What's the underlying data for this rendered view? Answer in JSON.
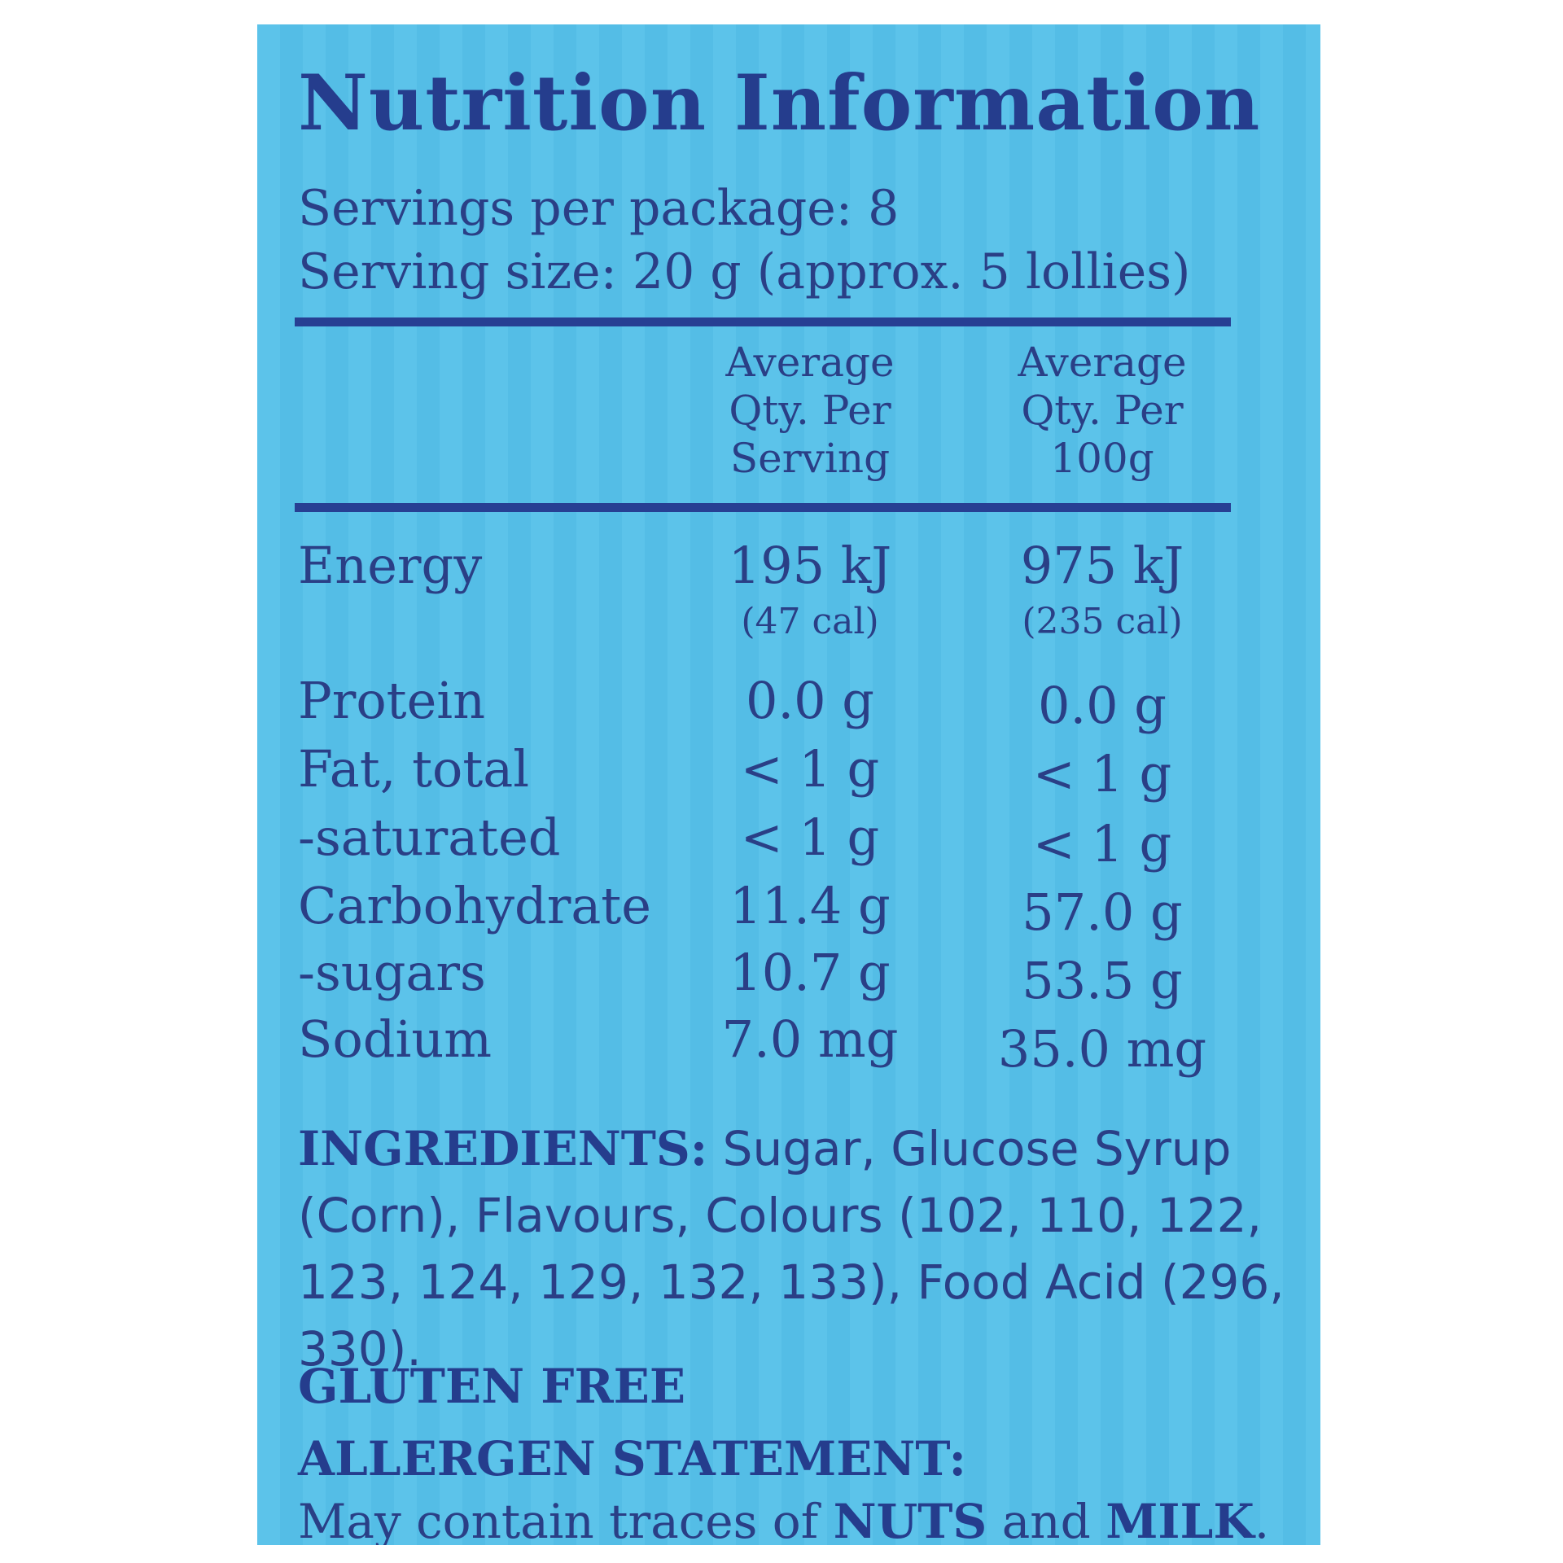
{
  "title": "Nutrition Information",
  "servings_per_package": "Servings per package: 8",
  "serving_size": "Serving size: 20 g (approx. 5 lollies)",
  "columns": {
    "per_serving": [
      "Average",
      "Qty. Per",
      "Serving"
    ],
    "per_100g": [
      "Average",
      "Qty. Per",
      "100g"
    ]
  },
  "rows": [
    {
      "label": "Energy",
      "per_serving": "195 kJ",
      "per_100g": "975 kJ",
      "per_serving_cal": "(47 cal)",
      "per_100g_cal": "(235 cal)"
    },
    {
      "label": "Protein",
      "per_serving": "0.0 g",
      "per_100g": "0.0 g"
    },
    {
      "label": "Fat, total",
      "per_serving": "< 1 g",
      "per_100g": "< 1 g"
    },
    {
      "label": "-saturated",
      "per_serving": "< 1 g",
      "per_100g": "< 1 g"
    },
    {
      "label": "Carbohydrate",
      "per_serving": "11.4 g",
      "per_100g": "57.0 g"
    },
    {
      "label": "-sugars",
      "per_serving": "10.7 g",
      "per_100g": "53.5 g"
    },
    {
      "label": "Sodium",
      "per_serving": "7.0 mg",
      "per_100g": "35.0 mg"
    }
  ],
  "ingredients": {
    "heading": "INGREDIENTS:",
    "text": "Sugar, Glucose Syrup (Corn), Flavours, Colours (102, 110, 122, 123, 124, 129, 132, 133), Food Acid (296, 330)."
  },
  "gluten_free": "GLUTEN FREE",
  "allergen": {
    "heading": "ALLERGEN STATEMENT:",
    "text_before": "May contain traces of",
    "nuts": "NUTS",
    "and": "and",
    "milk": "MILK",
    "end": "."
  },
  "colors": {
    "background": "#5cc3ea",
    "text": "#2a3f86",
    "rule": "#273f93"
  }
}
